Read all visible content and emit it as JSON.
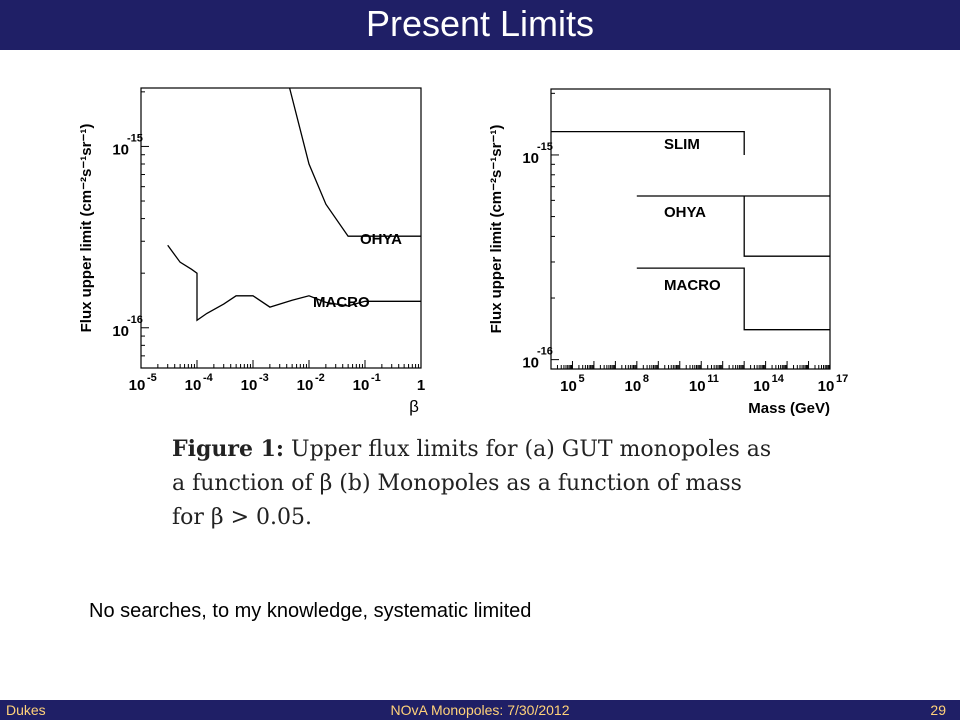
{
  "slide": {
    "title": "Present Limits",
    "caption_lead": "Figure 1:",
    "caption_body": " Upper flux limits for (a) GUT monopoles as a function of β (b) Monopoles as a function of mass for β > 0.05.",
    "note": "No searches, to my knowledge, systematic limited"
  },
  "footer": {
    "left": "Dukes",
    "center": "NOvA Monopoles: 7/30/2012",
    "right": "29"
  },
  "colors": {
    "title_bar": "#1f1f66",
    "footer_text": "#ffd27a",
    "plot_line": "#000000"
  },
  "chart_data": [
    {
      "type": "line",
      "xscale": "log",
      "yscale": "log",
      "xlabel": "β",
      "ylabel": "Flux upper limit (cm⁻²s⁻¹sr⁻¹)",
      "xlim": [
        1e-05,
        1
      ],
      "ylim": [
        6e-17,
        2.1e-15
      ],
      "x_ticks": [
        {
          "base": "10",
          "exp": "-5"
        },
        {
          "base": "10",
          "exp": "-4"
        },
        {
          "base": "10",
          "exp": "-3"
        },
        {
          "base": "10",
          "exp": "-2"
        },
        {
          "base": "10",
          "exp": "-1"
        },
        {
          "base": "1",
          "exp": ""
        }
      ],
      "y_ticks": [
        {
          "base": "10",
          "exp": "-15"
        },
        {
          "base": "10",
          "exp": "-16"
        }
      ],
      "series": [
        {
          "name": "OHYA",
          "points": [
            [
              0.0045,
              2.1e-15
            ],
            [
              0.01,
              8e-16
            ],
            [
              0.02,
              4.8e-16
            ],
            [
              0.05,
              3.2e-16
            ],
            [
              1,
              3.2e-16
            ]
          ]
        },
        {
          "name": "MACRO",
          "points": [
            [
              3e-05,
              2.85e-16
            ],
            [
              5e-05,
              2.3e-16
            ],
            [
              8e-05,
              2.1e-16
            ],
            [
              0.0001,
              2e-16
            ],
            [
              0.0001,
              1.1e-16
            ],
            [
              0.00015,
              1.2e-16
            ],
            [
              0.0003,
              1.35e-16
            ],
            [
              0.0005,
              1.5e-16
            ],
            [
              0.001,
              1.5e-16
            ],
            [
              0.002,
              1.3e-16
            ],
            [
              0.005,
              1.42e-16
            ],
            [
              0.01,
              1.5e-16
            ],
            [
              0.02,
              1.38e-16
            ],
            [
              0.05,
              1.32e-16
            ],
            [
              0.1,
              1.4e-16
            ],
            [
              1,
              1.4e-16
            ]
          ]
        }
      ]
    },
    {
      "type": "line",
      "xscale": "log",
      "yscale": "log",
      "xlabel": "Mass (GeV)",
      "ylabel": "Flux upper limit (cm⁻²s⁻¹sr⁻¹)",
      "xlim": [
        10000.0,
        1e+17
      ],
      "ylim": [
        9e-17,
        2.1e-15
      ],
      "x_ticks": [
        {
          "base": "10",
          "exp": "5"
        },
        {
          "base": "10",
          "exp": "8"
        },
        {
          "base": "10",
          "exp": "11"
        },
        {
          "base": "10",
          "exp": "14"
        },
        {
          "base": "10",
          "exp": "17"
        }
      ],
      "y_ticks": [
        {
          "base": "10",
          "exp": "-15"
        },
        {
          "base": "10",
          "exp": "-16"
        }
      ],
      "series": [
        {
          "name": "SLIM",
          "points": [
            [
              10000.0,
              1.3e-15
            ],
            [
              10000000000000.0,
              1.3e-15
            ],
            [
              10000000000000.0,
              1e-15
            ]
          ]
        },
        {
          "name": "OHYA",
          "points": [
            [
              100000000.0,
              6.3e-16
            ],
            [
              1e+17,
              6.3e-16
            ]
          ]
        },
        {
          "name": "OHYA",
          "points": [
            [
              10000000000000.0,
              6.3e-16
            ],
            [
              10000000000000.0,
              3.2e-16
            ],
            [
              1e+17,
              3.2e-16
            ]
          ]
        },
        {
          "name": "MACRO",
          "points": [
            [
              100000000.0,
              2.8e-16
            ],
            [
              10000000000000.0,
              2.8e-16
            ],
            [
              10000000000000.0,
              1.4e-16
            ],
            [
              1e+17,
              1.4e-16
            ]
          ]
        }
      ]
    }
  ]
}
